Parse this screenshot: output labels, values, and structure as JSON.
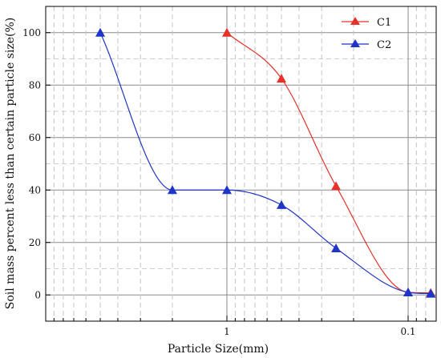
{
  "chart_data": {
    "type": "line",
    "xlabel": "Particle Size(mm)",
    "ylabel": "Soil mass percent less than certain particle size(%)",
    "x_scale": "log",
    "x_reversed": true,
    "xlim": [
      10,
      0.07
    ],
    "ylim": [
      -10,
      110
    ],
    "x_ticks": [
      {
        "value": 1,
        "label": "1"
      },
      {
        "value": 0.1,
        "label": "0.1"
      }
    ],
    "y_ticks": [
      {
        "value": 0,
        "label": "0"
      },
      {
        "value": 20,
        "label": "20"
      },
      {
        "value": 40,
        "label": "40"
      },
      {
        "value": 60,
        "label": "60"
      },
      {
        "value": 80,
        "label": "80"
      },
      {
        "value": 100,
        "label": "100"
      }
    ],
    "grid": true,
    "legend_position": "top-right",
    "series": [
      {
        "name": "C1",
        "color": "#e8312a",
        "x": [
          1,
          0.5,
          0.25,
          0.1,
          0.075
        ],
        "y": [
          100,
          82.5,
          41.5,
          1,
          0.8
        ]
      },
      {
        "name": "C2",
        "color": "#1f35c8",
        "x": [
          5,
          2,
          1,
          0.5,
          0.25,
          0.1,
          0.075
        ],
        "y": [
          100,
          40,
          40,
          34.3,
          17.8,
          1,
          0.5
        ]
      }
    ]
  }
}
